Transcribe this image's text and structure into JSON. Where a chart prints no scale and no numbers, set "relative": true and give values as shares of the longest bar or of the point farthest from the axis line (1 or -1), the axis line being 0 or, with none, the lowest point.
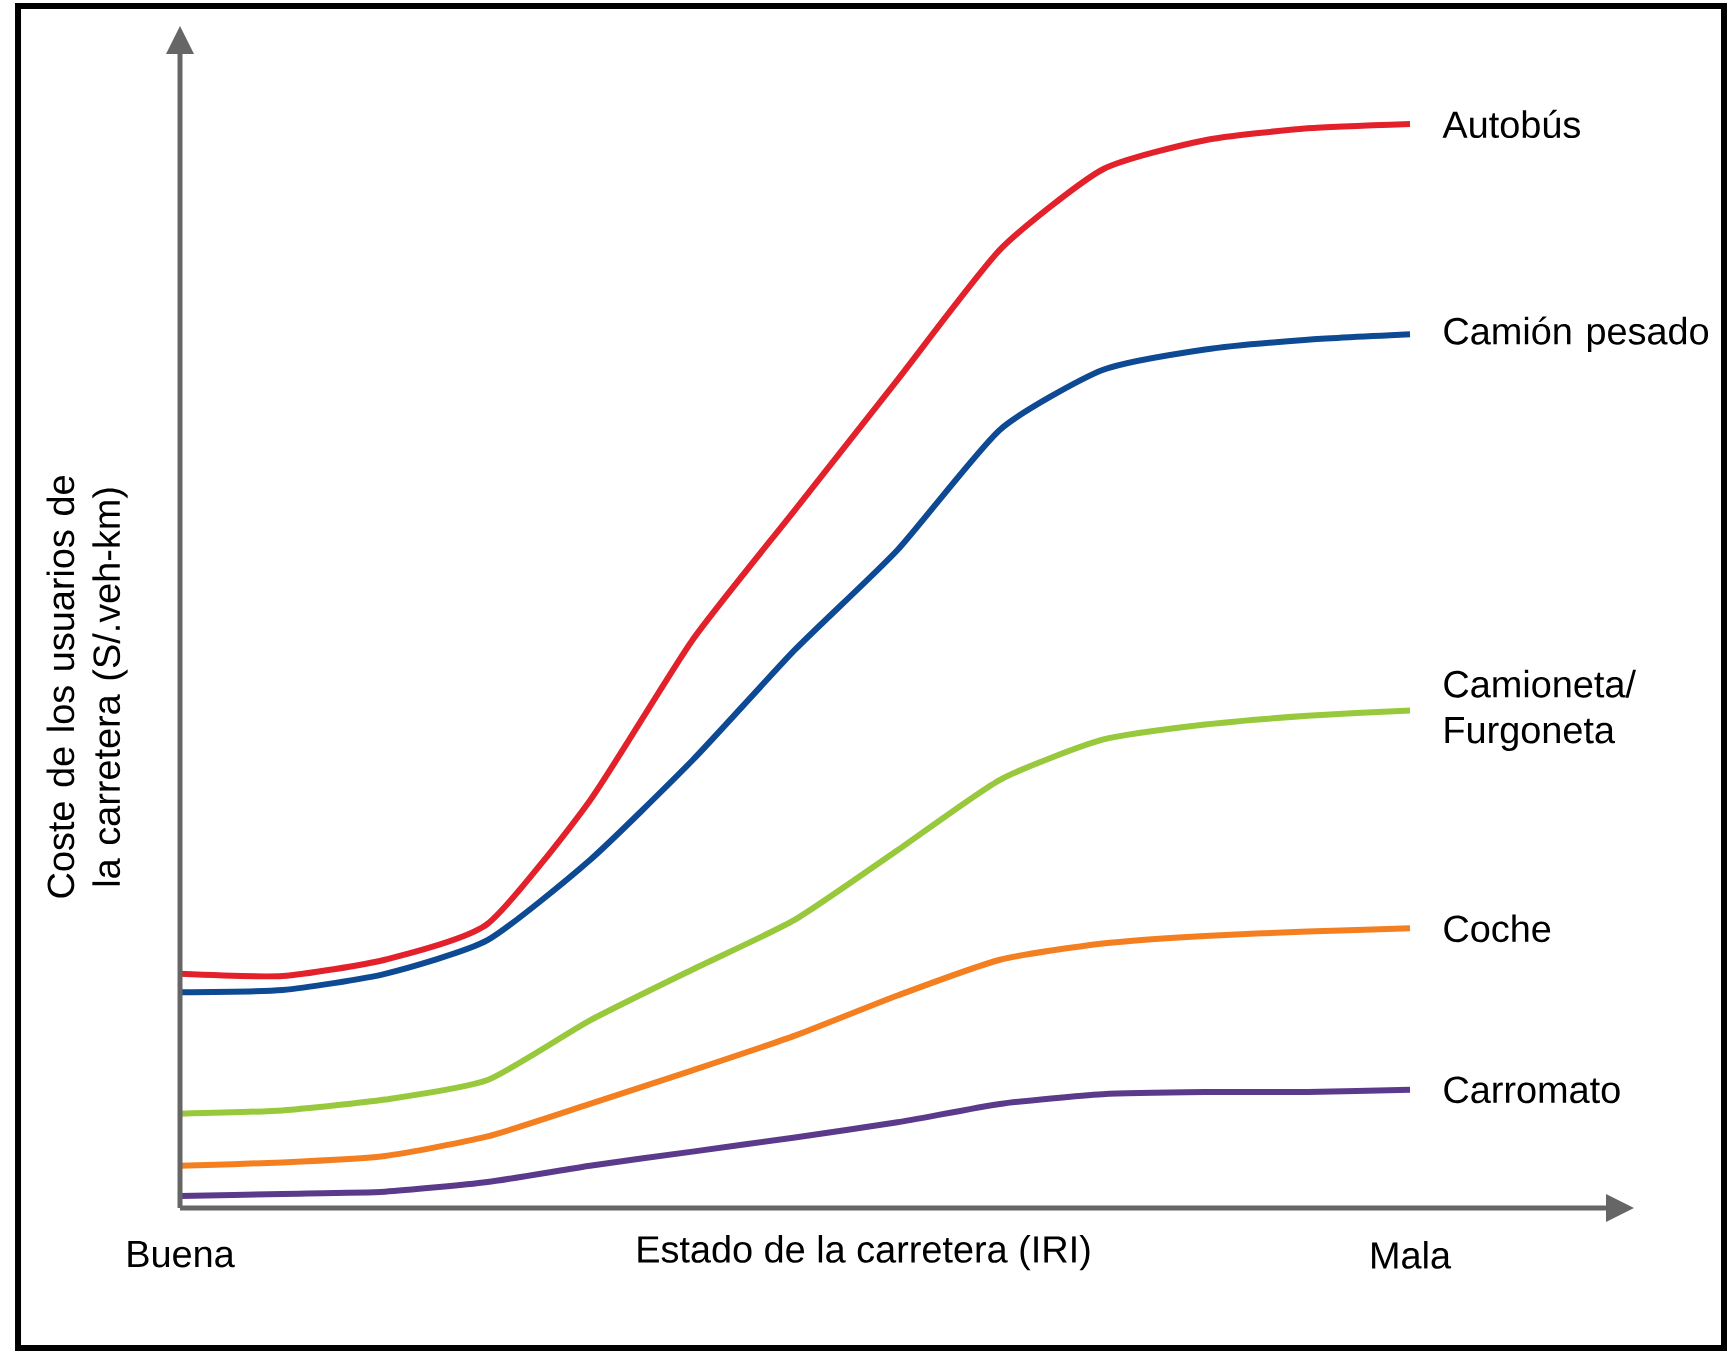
{
  "chart_data": {
    "type": "line",
    "relative": true,
    "marker": "none",
    "line_style": "solid",
    "xlabel": "Estado de la carretera (IRI)",
    "ylabel": "Coste de los usuarios de la carretera (S/.veh-km)",
    "categories": [
      "Buena",
      null,
      null,
      null,
      null,
      null,
      null,
      null,
      null,
      null,
      null,
      null,
      "Mala"
    ],
    "series": [
      {
        "name": "Autobús",
        "color": "#e3212b",
        "values": [
          0.216,
          0.214,
          0.229,
          0.262,
          0.376,
          0.524,
          0.644,
          0.764,
          0.884,
          0.958,
          0.985,
          0.996,
          1
        ]
      },
      {
        "name": "Camión pesado",
        "color": "#0d4a93",
        "values": [
          0.199,
          0.201,
          0.216,
          0.247,
          0.321,
          0.413,
          0.515,
          0.607,
          0.718,
          0.773,
          0.792,
          0.801,
          0.806
        ]
      },
      {
        "name": "Camioneta/ Furgoneta",
        "color": "#98c93c",
        "values": [
          0.087,
          0.09,
          0.1,
          0.118,
          0.173,
          0.22,
          0.266,
          0.33,
          0.395,
          0.432,
          0.446,
          0.454,
          0.459
        ]
      },
      {
        "name": "Coche",
        "color": "#f47f20",
        "values": [
          0.039,
          0.042,
          0.048,
          0.066,
          0.096,
          0.127,
          0.159,
          0.196,
          0.229,
          0.244,
          0.251,
          0.255,
          0.258
        ]
      },
      {
        "name": "Carromato",
        "color": "#5b3a8c",
        "values": [
          0.011,
          0.013,
          0.015,
          0.024,
          0.039,
          0.052,
          0.065,
          0.079,
          0.096,
          0.105,
          0.107,
          0.107,
          0.109
        ]
      }
    ]
  }
}
